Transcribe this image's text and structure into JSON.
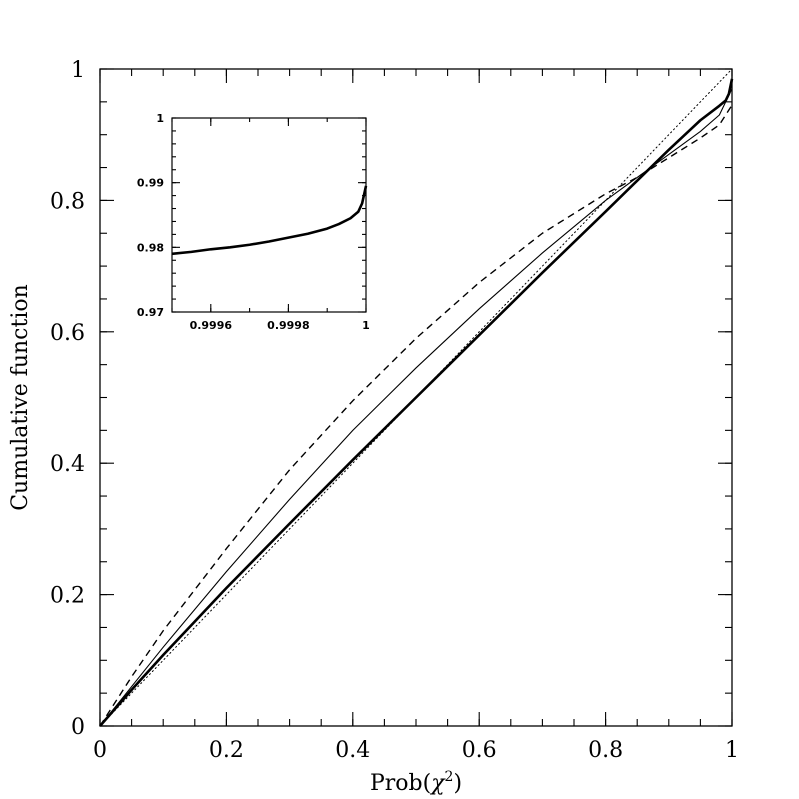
{
  "chart_data": [
    {
      "type": "line",
      "panel": "main",
      "title": "",
      "xlabel": "Prob(χ²)",
      "xlabel_parts": {
        "base": "Prob(",
        "symbol": "χ",
        "superscript": "2",
        "close": ")"
      },
      "ylabel": "Cumulative function",
      "xlim": [
        0,
        1
      ],
      "ylim": [
        0,
        1
      ],
      "x_ticks": [
        0,
        0.2,
        0.4,
        0.6,
        0.8,
        1
      ],
      "x_tick_labels": [
        "0",
        "0.2",
        "0.4",
        "0.6",
        "0.8",
        "1"
      ],
      "y_ticks": [
        0,
        0.2,
        0.4,
        0.6,
        0.8,
        1
      ],
      "y_tick_labels": [
        "0",
        "0.2",
        "0.4",
        "0.6",
        "0.8",
        "1"
      ],
      "grid": false,
      "legend": "none",
      "series": [
        {
          "style": "dotted",
          "x": [
            0,
            1
          ],
          "y": [
            0,
            1
          ]
        },
        {
          "style": "thick-solid",
          "x": [
            0,
            0.05,
            0.1,
            0.2,
            0.3,
            0.4,
            0.5,
            0.6,
            0.7,
            0.8,
            0.85,
            0.9,
            0.95,
            0.98,
            0.99,
            0.995,
            1
          ],
          "y": [
            0,
            0.055,
            0.108,
            0.21,
            0.308,
            0.405,
            0.5,
            0.595,
            0.69,
            0.783,
            0.83,
            0.877,
            0.922,
            0.944,
            0.952,
            0.962,
            0.985
          ]
        },
        {
          "style": "thin-solid",
          "x": [
            0,
            0.05,
            0.1,
            0.2,
            0.3,
            0.4,
            0.5,
            0.6,
            0.7,
            0.8,
            0.85,
            0.9,
            0.95,
            0.98,
            1
          ],
          "y": [
            0,
            0.06,
            0.12,
            0.235,
            0.345,
            0.45,
            0.545,
            0.635,
            0.72,
            0.8,
            0.835,
            0.87,
            0.905,
            0.93,
            0.97
          ]
        },
        {
          "style": "dashed",
          "x": [
            0,
            0.05,
            0.1,
            0.2,
            0.3,
            0.4,
            0.5,
            0.6,
            0.7,
            0.8,
            0.85,
            0.9,
            0.95,
            0.98,
            1
          ],
          "y": [
            0,
            0.075,
            0.145,
            0.27,
            0.39,
            0.495,
            0.59,
            0.675,
            0.75,
            0.81,
            0.835,
            0.865,
            0.895,
            0.915,
            0.945
          ]
        }
      ]
    },
    {
      "type": "line",
      "panel": "inset",
      "title": "",
      "xlabel": "",
      "ylabel": "",
      "xlim": [
        0.9995,
        1
      ],
      "ylim": [
        0.97,
        1
      ],
      "x_ticks": [
        0.9996,
        0.9998,
        1
      ],
      "x_tick_labels": [
        "0.9996",
        "0.9998",
        "1"
      ],
      "y_ticks": [
        0.97,
        0.98,
        0.99,
        1
      ],
      "y_tick_labels": [
        "0.97",
        "0.98",
        "0.99",
        "1"
      ],
      "grid": false,
      "legend": "none",
      "series": [
        {
          "style": "thick-solid",
          "x": [
            0.9995,
            0.99955,
            0.9996,
            0.99965,
            0.9997,
            0.99975,
            0.9998,
            0.99985,
            0.9999,
            0.99993,
            0.99996,
            0.99998,
            0.99999,
            1
          ],
          "y": [
            0.979,
            0.9793,
            0.9797,
            0.98,
            0.9804,
            0.9809,
            0.9815,
            0.9821,
            0.9829,
            0.9836,
            0.9845,
            0.9855,
            0.9868,
            0.9895
          ]
        }
      ]
    }
  ]
}
